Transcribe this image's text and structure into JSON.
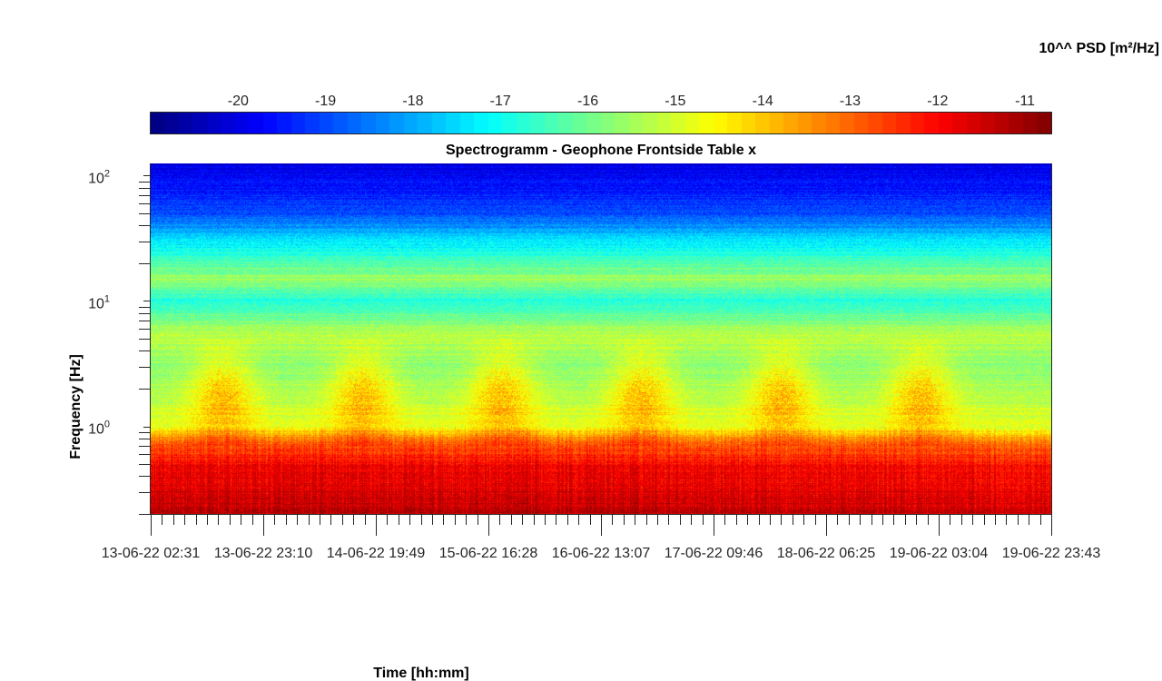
{
  "chart_data": {
    "type": "heatmap",
    "title": "Spectrogramm - Geophone Frontside Table x",
    "xlabel": "Time [hh:mm]",
    "ylabel": "Frequency [Hz]",
    "colorbar_label": "10^^ PSD [m²/Hz]",
    "colormap": "jet",
    "y_scale": "log",
    "ylim": [
      0.2,
      125
    ],
    "clim": [
      -21.0,
      -10.7
    ],
    "x_tick_labels": [
      "13-06-22 02:31",
      "13-06-22 23:10",
      "14-06-22 19:49",
      "15-06-22 16:28",
      "16-06-22 13:07",
      "17-06-22 09:46",
      "18-06-22 06:25",
      "19-06-22 03:04",
      "19-06-22 23:43"
    ],
    "y_ticks": [
      {
        "base": "10",
        "exp": "0",
        "value": 1
      },
      {
        "base": "10",
        "exp": "1",
        "value": 10
      },
      {
        "base": "10",
        "exp": "2",
        "value": 100
      }
    ],
    "colorbar_ticks": [
      "-20",
      "-19",
      "-18",
      "-17",
      "-16",
      "-15",
      "-14",
      "-13",
      "-12",
      "-11"
    ],
    "colorbar_tick_values": [
      -20,
      -19,
      -18,
      -17,
      -16,
      -15,
      -14,
      -13,
      -12,
      -11
    ],
    "x_minor_ticks_per_major": 10,
    "psd_profile_by_frequency": [
      {
        "freq": 0.2,
        "psd": -11.3
      },
      {
        "freq": 0.5,
        "psd": -12.0
      },
      {
        "freq": 0.75,
        "psd": -13.0
      },
      {
        "freq": 1.0,
        "psd": -14.8
      },
      {
        "freq": 3.0,
        "psd": -15.8
      },
      {
        "freq": 5.5,
        "psd": -15.2
      },
      {
        "freq": 10,
        "psd": -16.8
      },
      {
        "freq": 15,
        "psd": -15.6
      },
      {
        "freq": 30,
        "psd": -17.4
      },
      {
        "freq": 50,
        "psd": -19.0
      },
      {
        "freq": 100,
        "psd": -19.8
      },
      {
        "freq": 125,
        "psd": -20.0
      }
    ],
    "daily_activity_peaks": [
      "13-06-22",
      "14-06-22",
      "15-06-22",
      "16-06-22",
      "17-06-22",
      "18-06-22"
    ]
  }
}
